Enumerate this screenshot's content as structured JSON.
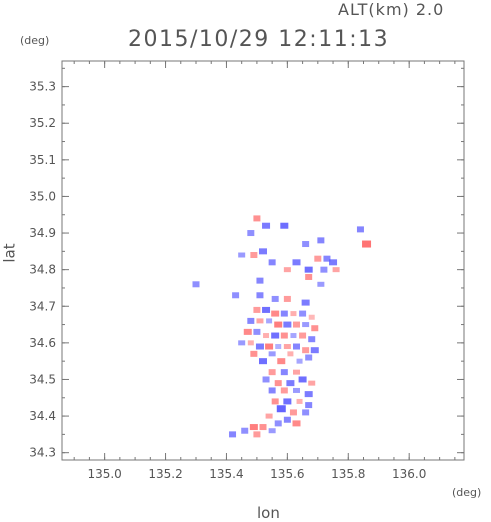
{
  "header": {
    "altitude_label": "ALT(km) 2.0",
    "timestamp": "2015/10/29 12:11:13"
  },
  "chart_data": {
    "type": "heatmap",
    "title": "2015/10/29 12:11:13",
    "subtitle": "ALT(km) 2.0",
    "xlabel": "lon",
    "ylabel": "lat",
    "x_unit": "(deg)",
    "y_unit": "(deg)",
    "xlim": [
      134.86,
      136.18
    ],
    "ylim": [
      34.28,
      35.37
    ],
    "x_ticks": [
      135.0,
      135.2,
      135.4,
      135.6,
      135.8,
      136.0
    ],
    "x_tick_labels": [
      "135.0",
      "135.2",
      "135.4",
      "135.6",
      "135.8",
      "136.0"
    ],
    "y_ticks": [
      34.3,
      34.4,
      34.5,
      34.6,
      34.7,
      34.8,
      34.9,
      35.0,
      35.1,
      35.2,
      35.3
    ],
    "y_tick_labels": [
      "34.3",
      "34.4",
      "34.5",
      "34.6",
      "34.7",
      "34.8",
      "34.9",
      "35.0",
      "35.1",
      "35.2",
      "35.3"
    ],
    "grid": false,
    "colors": {
      "positive": "#ff6b6b",
      "negative": "#5a5aff",
      "axis": "#777777"
    },
    "value_range": [
      -1,
      1
    ],
    "points": [
      [
        135.5,
        34.94,
        0.6
      ],
      [
        135.53,
        34.92,
        -0.7
      ],
      [
        135.48,
        34.9,
        -0.5
      ],
      [
        135.59,
        34.92,
        -0.8
      ],
      [
        135.84,
        34.91,
        -0.6
      ],
      [
        135.86,
        34.87,
        0.9
      ],
      [
        135.66,
        34.87,
        -0.5
      ],
      [
        135.71,
        34.88,
        -0.6
      ],
      [
        135.52,
        34.85,
        -0.7
      ],
      [
        135.45,
        34.84,
        -0.4
      ],
      [
        135.49,
        34.84,
        0.5
      ],
      [
        135.55,
        34.82,
        -0.6
      ],
      [
        135.6,
        34.8,
        0.4
      ],
      [
        135.63,
        34.82,
        -0.7
      ],
      [
        135.67,
        34.8,
        -0.8
      ],
      [
        135.7,
        34.83,
        0.5
      ],
      [
        135.73,
        34.83,
        -0.6
      ],
      [
        135.75,
        34.82,
        -0.7
      ],
      [
        135.76,
        34.8,
        0.4
      ],
      [
        135.72,
        34.8,
        -0.5
      ],
      [
        135.67,
        34.78,
        0.6
      ],
      [
        135.71,
        34.76,
        -0.4
      ],
      [
        135.3,
        34.76,
        -0.5
      ],
      [
        135.51,
        34.77,
        -0.6
      ],
      [
        135.43,
        34.73,
        -0.5
      ],
      [
        135.51,
        34.73,
        -0.6
      ],
      [
        135.56,
        34.72,
        -0.5
      ],
      [
        135.6,
        34.72,
        0.5
      ],
      [
        135.66,
        34.71,
        -0.7
      ],
      [
        135.5,
        34.69,
        0.5
      ],
      [
        135.53,
        34.69,
        -0.8
      ],
      [
        135.56,
        34.68,
        0.7
      ],
      [
        135.59,
        34.68,
        -0.6
      ],
      [
        135.62,
        34.68,
        0.3
      ],
      [
        135.65,
        34.68,
        -0.5
      ],
      [
        135.68,
        34.67,
        0.2
      ],
      [
        135.48,
        34.66,
        -0.6
      ],
      [
        135.51,
        34.66,
        0.4
      ],
      [
        135.54,
        34.66,
        -0.3
      ],
      [
        135.57,
        34.65,
        0.8
      ],
      [
        135.6,
        34.65,
        -0.7
      ],
      [
        135.63,
        34.65,
        0.5
      ],
      [
        135.66,
        34.65,
        -0.4
      ],
      [
        135.69,
        34.64,
        0.6
      ],
      [
        135.47,
        34.63,
        0.7
      ],
      [
        135.5,
        34.63,
        -0.5
      ],
      [
        135.53,
        34.62,
        0.3
      ],
      [
        135.56,
        34.62,
        -0.8
      ],
      [
        135.59,
        34.62,
        0.6
      ],
      [
        135.62,
        34.62,
        -0.3
      ],
      [
        135.65,
        34.62,
        0.5
      ],
      [
        135.68,
        34.61,
        -0.6
      ],
      [
        135.45,
        34.6,
        -0.4
      ],
      [
        135.48,
        34.6,
        0.3
      ],
      [
        135.51,
        34.59,
        -0.7
      ],
      [
        135.54,
        34.59,
        0.8
      ],
      [
        135.57,
        34.59,
        -0.2
      ],
      [
        135.6,
        34.59,
        0.4
      ],
      [
        135.63,
        34.59,
        -0.6
      ],
      [
        135.66,
        34.58,
        0.5
      ],
      [
        135.69,
        34.58,
        -0.7
      ],
      [
        135.49,
        34.57,
        0.6
      ],
      [
        135.55,
        34.57,
        -0.4
      ],
      [
        135.61,
        34.57,
        0.3
      ],
      [
        135.67,
        34.56,
        -0.5
      ],
      [
        135.52,
        34.55,
        -0.8
      ],
      [
        135.58,
        34.55,
        0.7
      ],
      [
        135.64,
        34.55,
        -0.3
      ],
      [
        135.55,
        34.52,
        0.5
      ],
      [
        135.59,
        34.52,
        -0.6
      ],
      [
        135.63,
        34.52,
        0.4
      ],
      [
        135.53,
        34.5,
        -0.5
      ],
      [
        135.57,
        34.49,
        0.6
      ],
      [
        135.61,
        34.49,
        -0.7
      ],
      [
        135.65,
        34.5,
        -0.8
      ],
      [
        135.68,
        34.49,
        0.4
      ],
      [
        135.55,
        34.47,
        -0.6
      ],
      [
        135.59,
        34.47,
        0.5
      ],
      [
        135.63,
        34.47,
        -0.4
      ],
      [
        135.67,
        34.46,
        -0.7
      ],
      [
        135.56,
        34.44,
        0.6
      ],
      [
        135.6,
        34.44,
        -0.8
      ],
      [
        135.64,
        34.44,
        0.3
      ],
      [
        135.67,
        34.43,
        -0.6
      ],
      [
        135.58,
        34.42,
        -0.9
      ],
      [
        135.62,
        34.41,
        0.5
      ],
      [
        135.66,
        34.41,
        -0.5
      ],
      [
        135.54,
        34.4,
        0.4
      ],
      [
        135.6,
        34.39,
        -0.6
      ],
      [
        135.63,
        34.38,
        0.7
      ],
      [
        135.57,
        34.38,
        -0.5
      ],
      [
        135.52,
        34.37,
        0.6
      ],
      [
        135.49,
        34.37,
        0.8
      ],
      [
        135.46,
        34.36,
        -0.5
      ],
      [
        135.42,
        34.35,
        -0.6
      ],
      [
        135.55,
        34.36,
        -0.4
      ],
      [
        135.5,
        34.35,
        0.5
      ]
    ]
  }
}
